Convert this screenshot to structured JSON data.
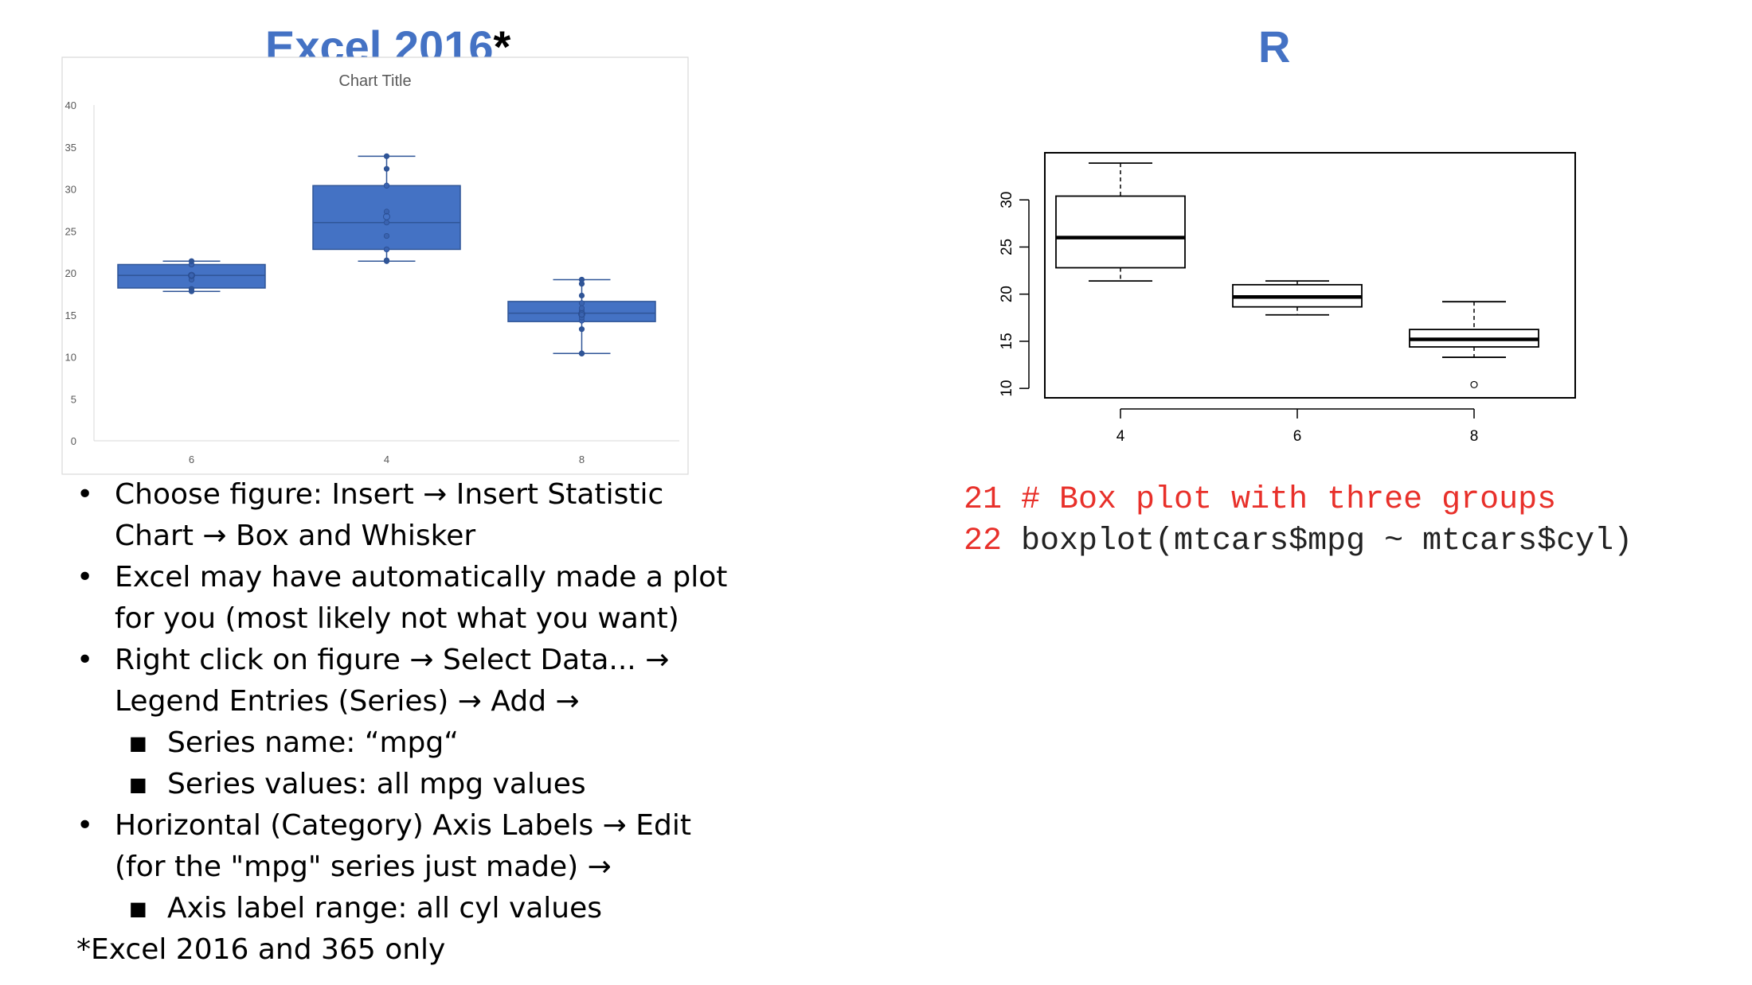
{
  "slide": {
    "excel_title": "Excel 2016",
    "excel_title_star": "*",
    "r_title": "R",
    "bullets": [
      {
        "level": 1,
        "text": "Choose figure: Insert → Insert Statistic Chart → Box and Whisker",
        "lines": [
          "Choose figure: Insert → Insert Statistic",
          "Chart → Box and Whisker"
        ]
      },
      {
        "level": 1,
        "text": "Excel may have automatically made a plot for you (most likely not what you want)",
        "lines": [
          "Excel may have automatically made a plot",
          "for you (most likely not what you want)"
        ]
      },
      {
        "level": 1,
        "text": "Right click on figure → Select Data... → Legend Entries (Series) → Add →",
        "lines": [
          "Right click on figure → Select Data... →",
          "Legend Entries (Series) → Add →"
        ]
      },
      {
        "level": 2,
        "text": "Series name: “mpg“",
        "lines": [
          "Series name: “mpg“"
        ]
      },
      {
        "level": 2,
        "text": "Series values: all mpg values",
        "lines": [
          "Series values: all mpg values"
        ]
      },
      {
        "level": 1,
        "text": "Horizontal (Category) Axis Labels → Edit (for the \"mpg\" series just made) →",
        "lines": [
          "Horizontal (Category) Axis Labels → Edit",
          "(for the \"mpg\" series just made) →"
        ]
      },
      {
        "level": 2,
        "text": "Axis label range: all cyl values",
        "lines": [
          "Axis label range: all cyl values"
        ]
      }
    ],
    "footnote": "*Excel 2016 and 365 only",
    "code": [
      {
        "line_no": "21",
        "text": "# Box plot with three groups",
        "kind": "comment"
      },
      {
        "line_no": "22",
        "text": "boxplot(mtcars$mpg ~ mtcars$cyl)",
        "kind": "code"
      }
    ]
  },
  "colors": {
    "title_blue": "#4472c4",
    "box_fill": "#4472c4",
    "box_stroke": "#2f5597",
    "code_red": "#e8302a"
  },
  "chart_data": [
    {
      "type": "boxplot",
      "title": "Chart Title",
      "xlabel": "",
      "ylabel": "",
      "categories": [
        "6",
        "4",
        "8"
      ],
      "ylim": [
        0,
        40
      ],
      "yticks": [
        0,
        5,
        10,
        15,
        20,
        25,
        30,
        35,
        40
      ],
      "grid": false,
      "legend": "none",
      "boxes": [
        {
          "category": "6",
          "min": 17.8,
          "q1": 18.2,
          "median": 19.7,
          "q3": 21.0,
          "max": 21.4,
          "mean": 19.7,
          "points": [
            21.0,
            21.0,
            21.4,
            18.1,
            19.2,
            17.8,
            19.7
          ]
        },
        {
          "category": "4",
          "min": 21.4,
          "q1": 22.8,
          "median": 26.0,
          "q3": 30.4,
          "max": 33.9,
          "mean": 26.7,
          "points": [
            22.8,
            24.4,
            22.8,
            32.4,
            30.4,
            33.9,
            21.5,
            27.3,
            26.0,
            30.4,
            21.4
          ]
        },
        {
          "category": "8",
          "min": 10.4,
          "q1": 14.2,
          "median": 15.2,
          "q3": 16.6,
          "max": 19.2,
          "mean": 15.1,
          "points": [
            18.7,
            14.3,
            16.4,
            17.3,
            15.2,
            10.4,
            10.4,
            14.7,
            15.5,
            15.2,
            13.3,
            19.2,
            15.8,
            15.0
          ]
        }
      ]
    },
    {
      "type": "boxplot",
      "title": "",
      "xlabel": "",
      "ylabel": "",
      "categories": [
        "4",
        "6",
        "8"
      ],
      "ylim": [
        9,
        35
      ],
      "yticks": [
        10,
        15,
        20,
        25,
        30
      ],
      "grid": false,
      "legend": "none",
      "boxes": [
        {
          "category": "4",
          "min": 21.4,
          "q1": 22.8,
          "median": 26.0,
          "q3": 30.4,
          "max": 33.9,
          "outliers": []
        },
        {
          "category": "6",
          "min": 17.8,
          "q1": 18.65,
          "median": 19.7,
          "q3": 21.0,
          "max": 21.4,
          "outliers": []
        },
        {
          "category": "8",
          "min": 13.3,
          "q1": 14.4,
          "median": 15.2,
          "q3": 16.25,
          "max": 19.2,
          "outliers": [
            10.4
          ]
        }
      ]
    }
  ]
}
